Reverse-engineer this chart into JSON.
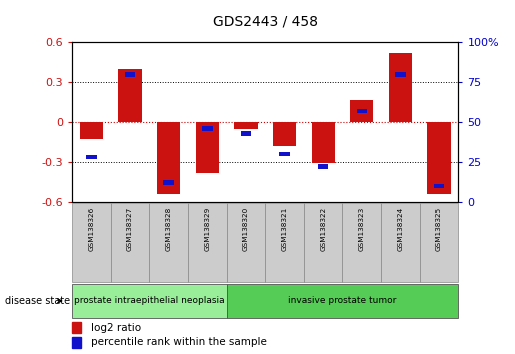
{
  "title": "GDS2443 / 458",
  "samples": [
    "GSM138326",
    "GSM138327",
    "GSM138328",
    "GSM138329",
    "GSM138320",
    "GSM138321",
    "GSM138322",
    "GSM138323",
    "GSM138324",
    "GSM138325"
  ],
  "log2_ratio": [
    -0.13,
    0.4,
    -0.54,
    -0.38,
    -0.05,
    -0.18,
    -0.31,
    0.17,
    0.52,
    -0.54
  ],
  "percentile_rank": [
    28,
    80,
    12,
    46,
    43,
    30,
    22,
    57,
    80,
    10
  ],
  "ylim": [
    -0.6,
    0.6
  ],
  "yticks_left": [
    -0.6,
    -0.3,
    0,
    0.3,
    0.6
  ],
  "yticks_right": [
    0,
    25,
    50,
    75,
    100
  ],
  "bar_color": "#cc1111",
  "dot_color": "#1111cc",
  "zero_line_color": "#cc0000",
  "disease_groups": [
    {
      "label": "prostate intraepithelial neoplasia",
      "start": 0,
      "end": 4,
      "color": "#99ee99"
    },
    {
      "label": "invasive prostate tumor",
      "start": 4,
      "end": 10,
      "color": "#55cc55"
    }
  ],
  "legend_red_label": "log2 ratio",
  "legend_blue_label": "percentile rank within the sample",
  "bar_width": 0.6
}
